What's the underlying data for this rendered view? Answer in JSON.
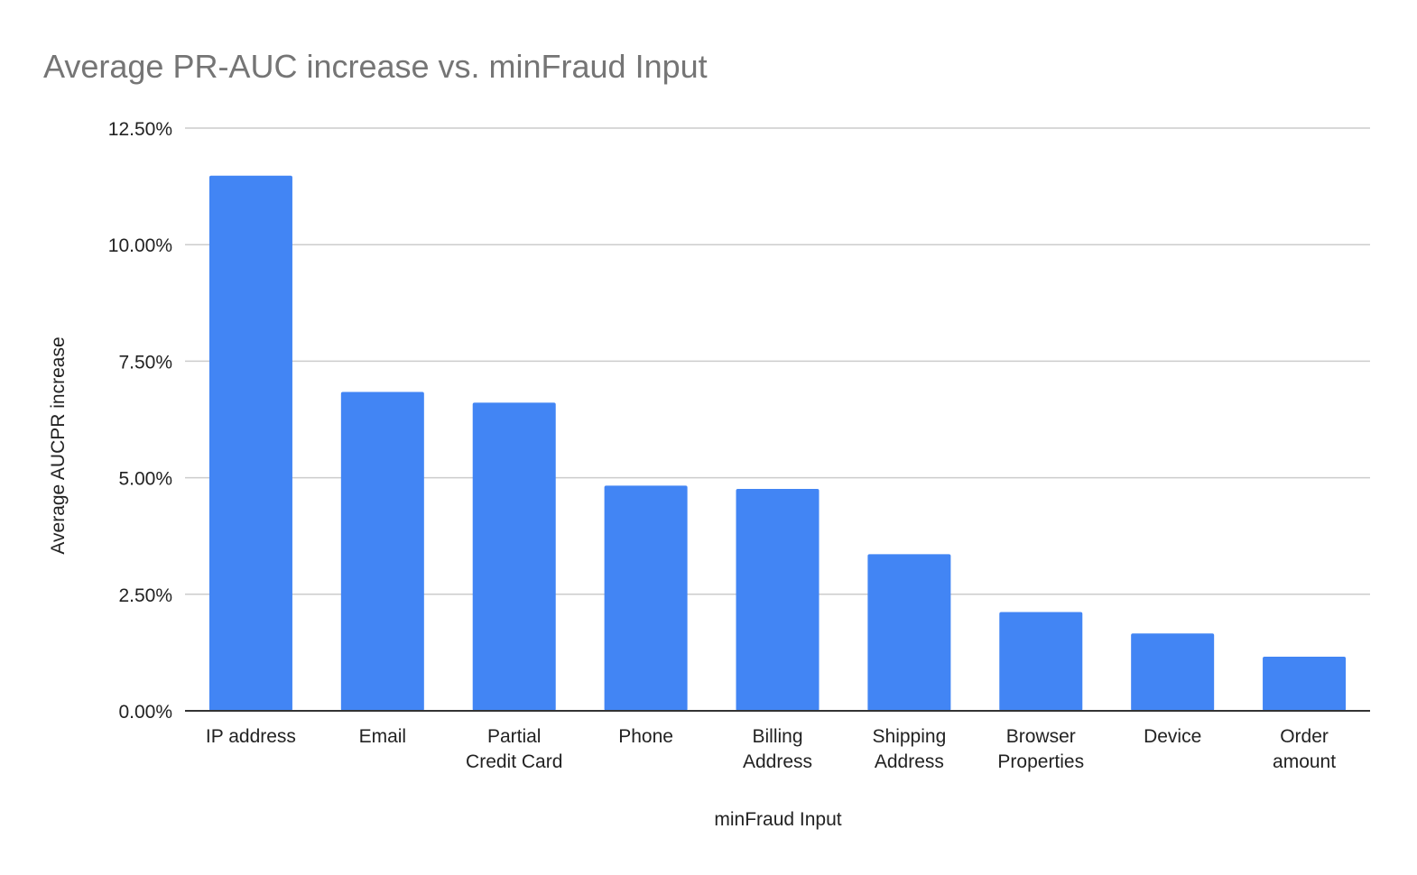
{
  "chart_data": {
    "type": "bar",
    "title": "Average PR-AUC increase vs. minFraud Input",
    "xlabel": "minFraud Input",
    "ylabel": "Average AUCPR increase",
    "categories": [
      [
        "IP address"
      ],
      [
        "Email"
      ],
      [
        "Partial",
        "Credit Card"
      ],
      [
        "Phone"
      ],
      [
        "Billing",
        "Address"
      ],
      [
        "Shipping",
        "Address"
      ],
      [
        "Browser",
        "Properties"
      ],
      [
        "Device"
      ],
      [
        "Order",
        "amount"
      ]
    ],
    "values": [
      11.48,
      6.84,
      6.61,
      4.83,
      4.76,
      3.36,
      2.12,
      1.66,
      1.16
    ],
    "value_unit": "%",
    "ylim": [
      0,
      12.5
    ],
    "yticks": [
      "0.00%",
      "2.50%",
      "5.00%",
      "7.50%",
      "10.00%",
      "12.50%"
    ],
    "ytick_values": [
      0,
      2.5,
      5,
      7.5,
      10,
      12.5
    ],
    "grid": true,
    "legend": "none",
    "colors": {
      "bar": "#4285f4",
      "title": "#757575",
      "grid": "#cccccc",
      "text": "#222222"
    }
  }
}
